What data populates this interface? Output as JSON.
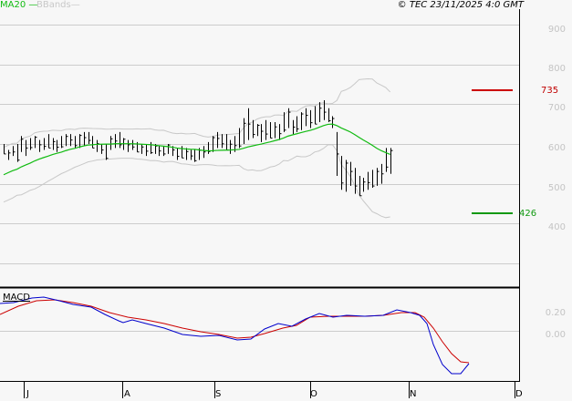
{
  "header": {
    "legend_ma": "MA20",
    "legend_bb": "BBands",
    "copyright": "© TEC 23/11/2025 4:0 GMT"
  },
  "colors": {
    "background": "#f7f7f7",
    "grid": "#cccccc",
    "bars": "#000000",
    "ma20": "#11bb11",
    "bbands": "#c8c8c8",
    "macd": "#0000cc",
    "signal": "#cc0000",
    "resistance": "#cc0000",
    "support": "#119911"
  },
  "chart_data": [
    {
      "type": "ohlc",
      "title": "Price (daily bars) with MA20 and Bollinger Bands",
      "yticks": [
        900,
        800,
        700,
        600,
        500,
        400
      ],
      "ylim": [
        300,
        920
      ],
      "xticks": [
        "J",
        "A",
        "S",
        "O",
        "N",
        "D"
      ],
      "grid": true,
      "levels": {
        "resistance": 735,
        "support": 426
      },
      "bars": [
        [
          575,
          600
        ],
        [
          560,
          585
        ],
        [
          570,
          595
        ],
        [
          555,
          600
        ],
        [
          580,
          620
        ],
        [
          570,
          610
        ],
        [
          585,
          615
        ],
        [
          590,
          620
        ],
        [
          580,
          610
        ],
        [
          585,
          615
        ],
        [
          590,
          625
        ],
        [
          585,
          615
        ],
        [
          580,
          610
        ],
        [
          590,
          620
        ],
        [
          595,
          625
        ],
        [
          595,
          625
        ],
        [
          590,
          620
        ],
        [
          590,
          625
        ],
        [
          595,
          630
        ],
        [
          600,
          630
        ],
        [
          590,
          620
        ],
        [
          580,
          610
        ],
        [
          575,
          600
        ],
        [
          560,
          600
        ],
        [
          585,
          620
        ],
        [
          590,
          625
        ],
        [
          590,
          630
        ],
        [
          585,
          615
        ],
        [
          580,
          610
        ],
        [
          585,
          610
        ],
        [
          580,
          605
        ],
        [
          575,
          600
        ],
        [
          570,
          600
        ],
        [
          575,
          605
        ],
        [
          575,
          600
        ],
        [
          570,
          595
        ],
        [
          570,
          595
        ],
        [
          575,
          600
        ],
        [
          570,
          595
        ],
        [
          560,
          590
        ],
        [
          565,
          595
        ],
        [
          560,
          590
        ],
        [
          560,
          585
        ],
        [
          555,
          585
        ],
        [
          560,
          590
        ],
        [
          565,
          595
        ],
        [
          575,
          605
        ],
        [
          580,
          620
        ],
        [
          590,
          630
        ],
        [
          590,
          625
        ],
        [
          585,
          625
        ],
        [
          575,
          610
        ],
        [
          580,
          620
        ],
        [
          590,
          640
        ],
        [
          600,
          665
        ],
        [
          610,
          690
        ],
        [
          615,
          660
        ],
        [
          620,
          650
        ],
        [
          605,
          650
        ],
        [
          610,
          660
        ],
        [
          615,
          655
        ],
        [
          615,
          655
        ],
        [
          610,
          650
        ],
        [
          630,
          680
        ],
        [
          640,
          690
        ],
        [
          625,
          660
        ],
        [
          630,
          670
        ],
        [
          635,
          680
        ],
        [
          645,
          690
        ],
        [
          640,
          685
        ],
        [
          650,
          695
        ],
        [
          655,
          705
        ],
        [
          660,
          710
        ],
        [
          655,
          690
        ],
        [
          640,
          670
        ],
        [
          520,
          630
        ],
        [
          485,
          570
        ],
        [
          480,
          560
        ],
        [
          495,
          555
        ],
        [
          475,
          540
        ],
        [
          470,
          520
        ],
        [
          480,
          515
        ],
        [
          485,
          530
        ],
        [
          490,
          535
        ],
        [
          495,
          540
        ],
        [
          500,
          550
        ],
        [
          530,
          590
        ],
        [
          525,
          590
        ]
      ]
    },
    {
      "type": "line",
      "title": "MACD",
      "yticks": [
        "0.20",
        "0.00"
      ],
      "series": [
        {
          "name": "MACD",
          "color": "#0000cc"
        },
        {
          "name": "Signal",
          "color": "#cc0000"
        }
      ]
    }
  ],
  "yaxis_labels": [
    "900",
    "800",
    "700",
    "600",
    "500",
    "400"
  ],
  "markers": {
    "high": "735",
    "low": "426"
  },
  "macd": {
    "title": "MACD",
    "labels": [
      "0.20",
      "0.00"
    ]
  },
  "xaxis": [
    "J",
    "A",
    "S",
    "O",
    "N",
    "D"
  ]
}
